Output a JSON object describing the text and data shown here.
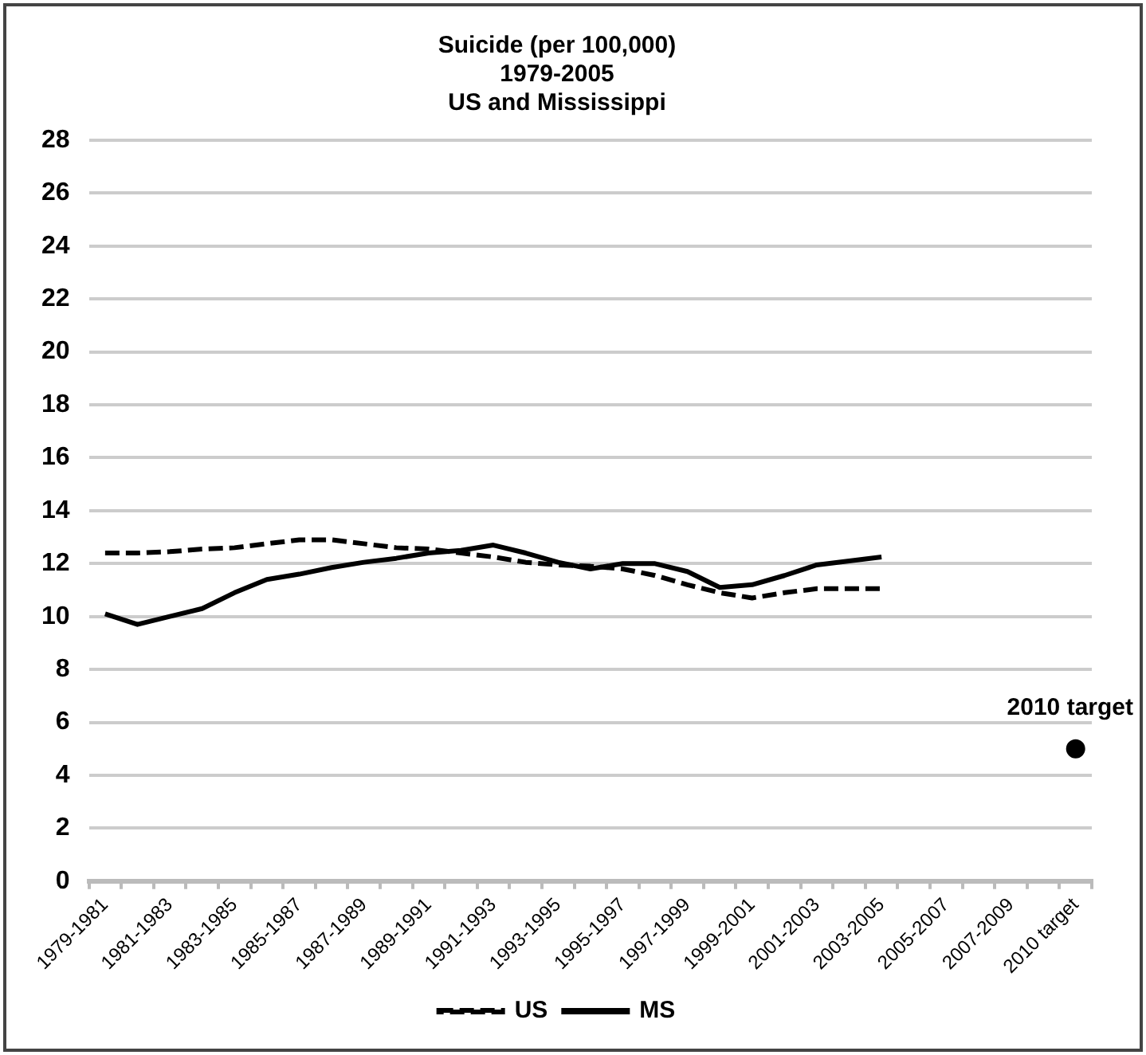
{
  "chart_data": {
    "type": "line",
    "title": "Suicide (per 100,000)\n1979-2005\nUS and Mississippi",
    "categories": [
      "1979-1981",
      null,
      "1981-1983",
      null,
      "1983-1985",
      null,
      "1985-1987",
      null,
      "1987-1989",
      null,
      "1989-1991",
      null,
      "1991-1993",
      null,
      "1993-1995",
      null,
      "1995-1997",
      null,
      "1997-1999",
      null,
      "1999-2001",
      null,
      "2001-2003",
      null,
      "2003-2005",
      null,
      "2005-2007",
      null,
      "2007-2009",
      null,
      "2010 target"
    ],
    "series": [
      {
        "name": "US",
        "color": "#000000",
        "line_style": "dashed",
        "values": [
          12.4,
          12.4,
          12.45,
          12.55,
          12.6,
          12.75,
          12.9,
          12.9,
          12.75,
          12.6,
          12.55,
          12.4,
          12.25,
          12.05,
          11.95,
          11.9,
          11.8,
          11.55,
          11.2,
          10.9,
          10.7,
          10.9,
          11.05,
          11.05,
          11.05,
          null,
          null,
          null,
          null,
          null,
          null
        ]
      },
      {
        "name": "MS",
        "color": "#000000",
        "line_style": "solid",
        "values": [
          10.1,
          9.7,
          10.0,
          10.3,
          10.9,
          11.4,
          11.6,
          11.85,
          12.05,
          12.2,
          12.4,
          12.5,
          12.7,
          12.4,
          12.05,
          11.8,
          12.0,
          12.0,
          11.7,
          11.1,
          11.2,
          11.55,
          11.95,
          12.1,
          12.25,
          null,
          null,
          null,
          null,
          null,
          null
        ]
      },
      {
        "type": "scatter",
        "color": "#000000",
        "marker": "circle",
        "values": [
          null,
          null,
          null,
          null,
          null,
          null,
          null,
          null,
          null,
          null,
          null,
          null,
          null,
          null,
          null,
          null,
          null,
          null,
          null,
          null,
          null,
          null,
          null,
          null,
          null,
          null,
          null,
          null,
          null,
          null,
          5
        ]
      }
    ],
    "ylim": [
      0,
      28
    ],
    "yticks": [
      0,
      2,
      4,
      6,
      8,
      10,
      12,
      14,
      16,
      18,
      20,
      22,
      24,
      26,
      28
    ],
    "grid": "y",
    "legend": "bottom",
    "marker": "none",
    "annotations": [
      {
        "text": "2010 target",
        "x": "2010 target",
        "y": 5
      }
    ]
  }
}
